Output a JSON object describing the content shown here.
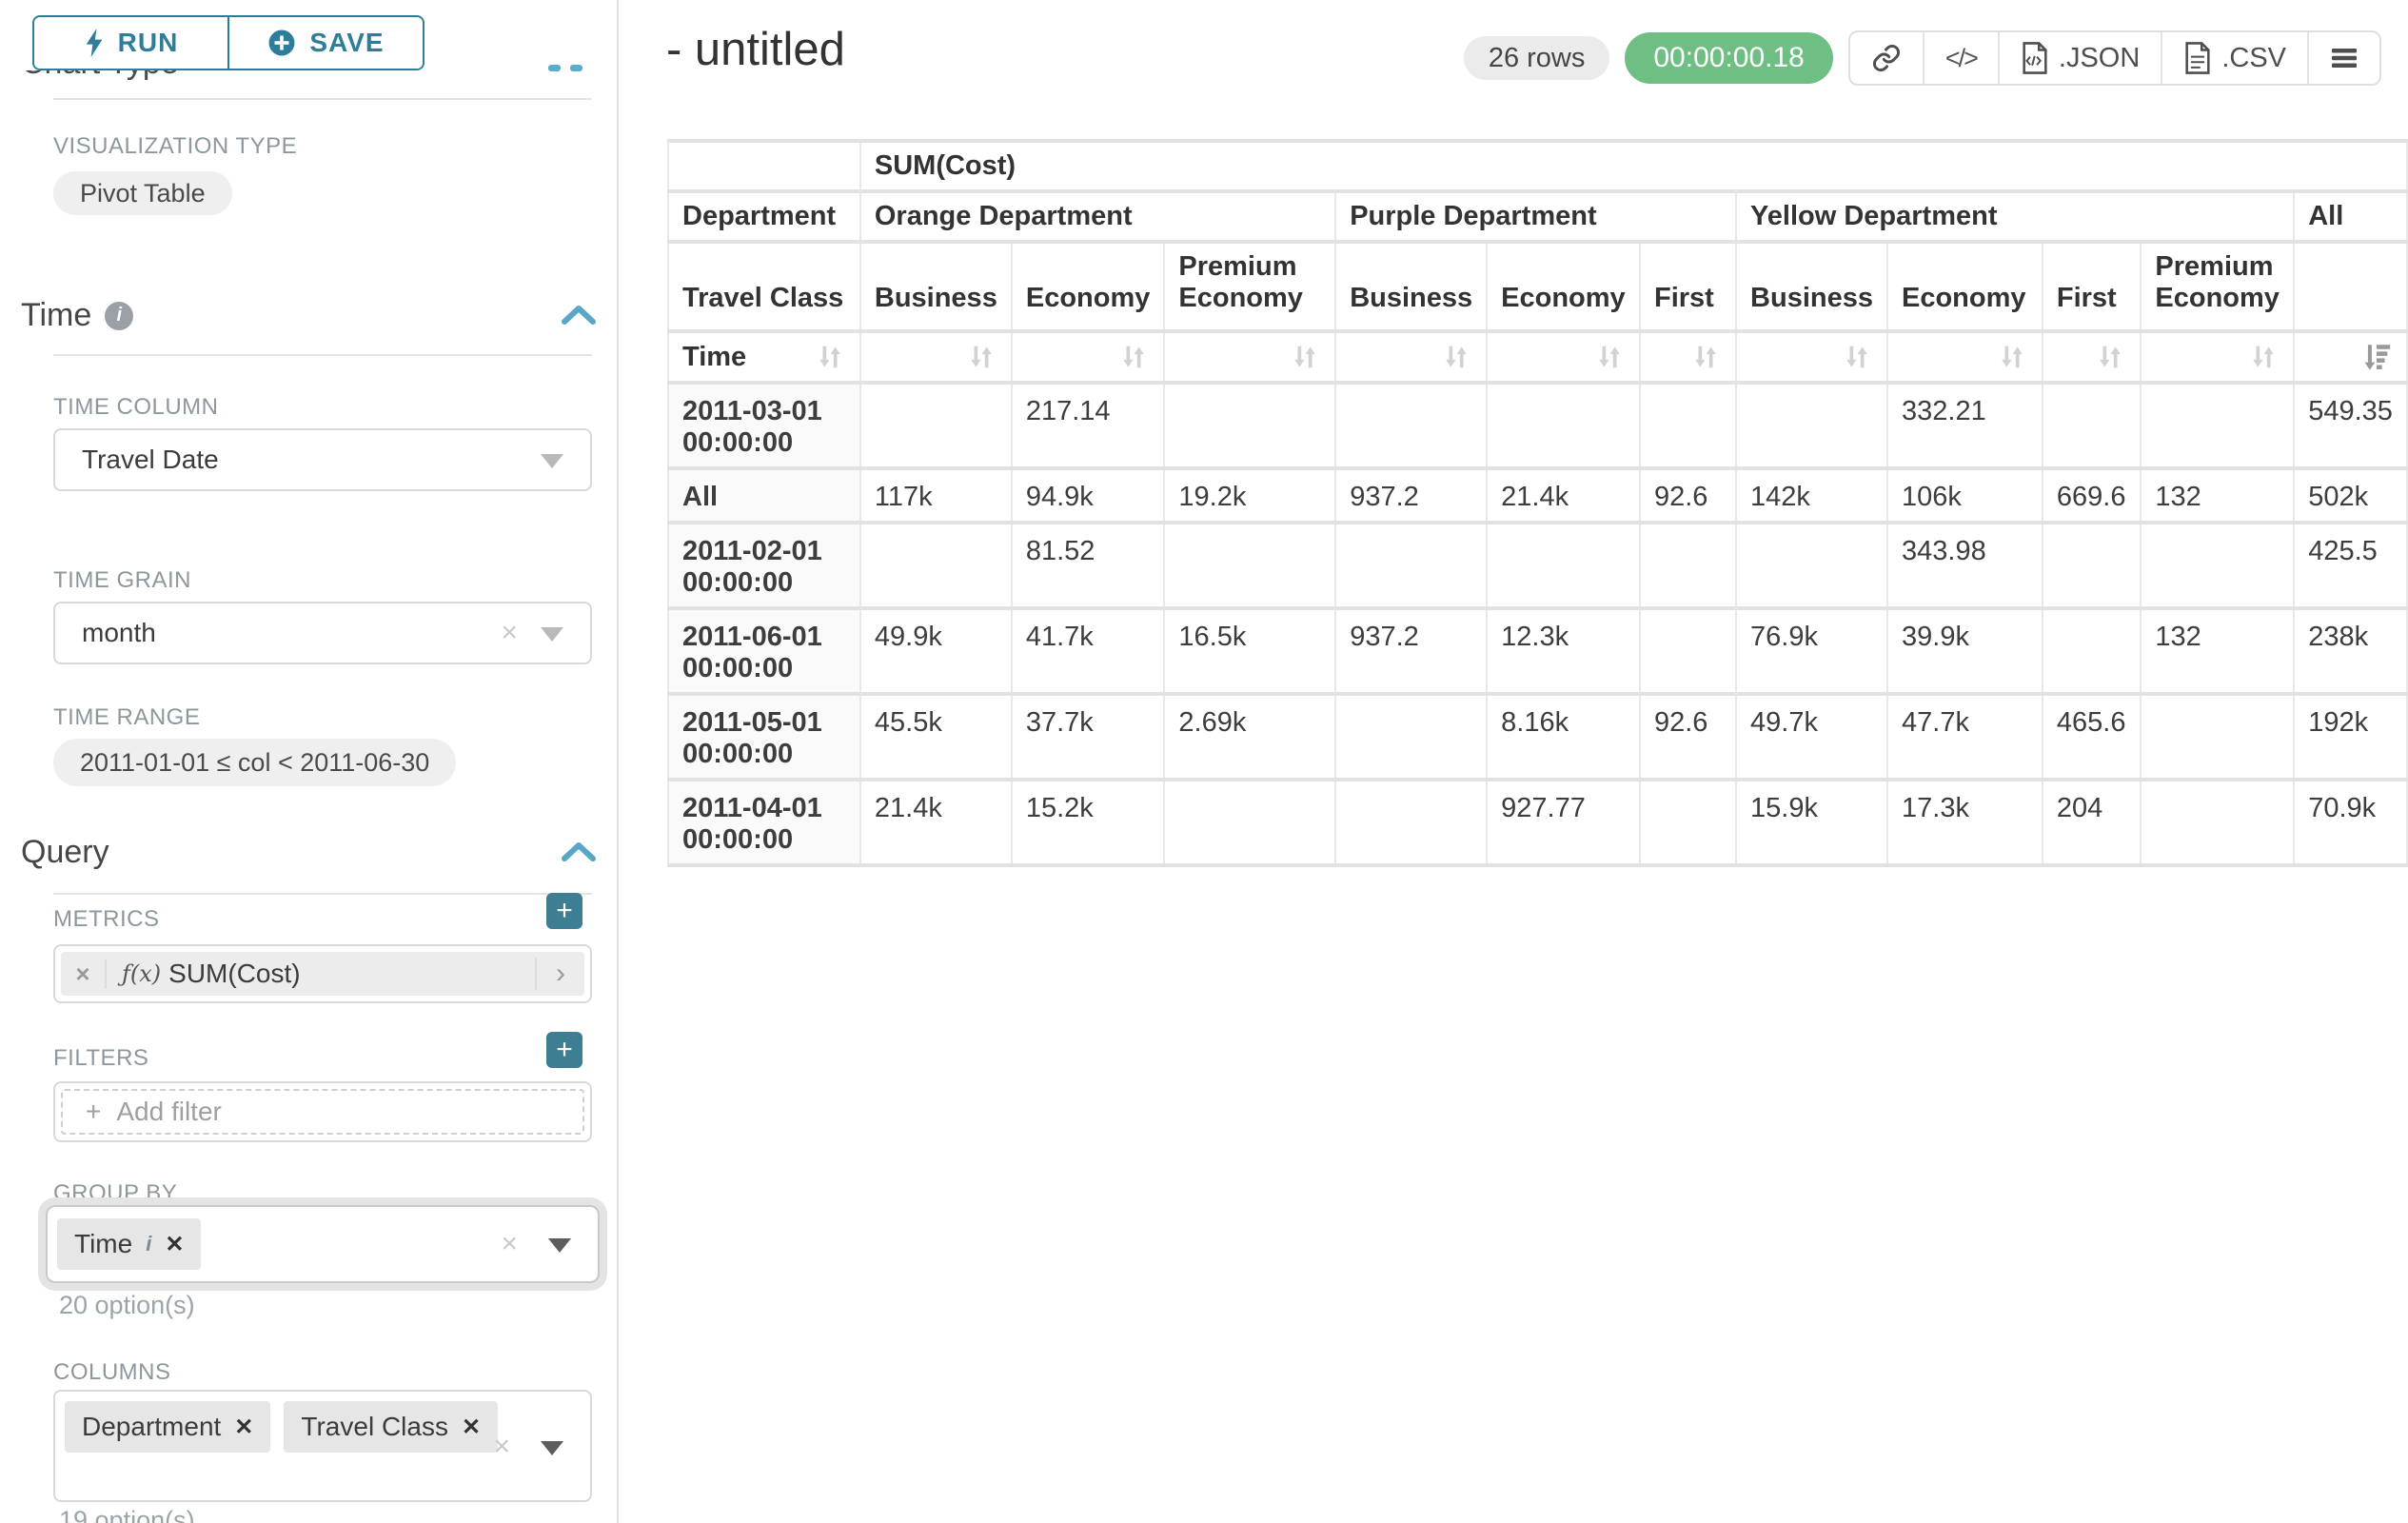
{
  "icons": {
    "plus": "+",
    "close": "✕",
    "clear": "×",
    "fx": "ƒ(x)",
    "chevron_right": "›",
    "code": "</>",
    "add": "+"
  },
  "sidebar": {
    "run_button": "RUN",
    "save_button": "SAVE",
    "scrolled_heading": "Chart Type",
    "visualization": {
      "label": "VISUALIZATION TYPE",
      "value": "Pivot Table"
    },
    "time": {
      "title": "Time",
      "column_label": "TIME COLUMN",
      "column_value": "Travel Date",
      "grain_label": "TIME GRAIN",
      "grain_value": "month",
      "range_label": "TIME RANGE",
      "range_value": "2011-01-01 ≤ col < 2011-06-30"
    },
    "query": {
      "title": "Query",
      "metrics_label": "METRICS",
      "metric_name": "SUM(Cost)",
      "filters_label": "FILTERS",
      "add_filter_label": "Add filter",
      "group_by_label": "GROUP BY",
      "group_by_pills": [
        "Time"
      ],
      "group_by_hint": "20 option(s)",
      "columns_label": "COLUMNS",
      "columns_pills": [
        "Department",
        "Travel Class"
      ],
      "columns_hint": "19 option(s)"
    }
  },
  "main": {
    "title": "- untitled",
    "rows_badge": "26 rows",
    "timer_badge": "00:00:00.18",
    "json_label": ".JSON",
    "csv_label": ".CSV"
  },
  "pivot_table": {
    "metric_header": "SUM(Cost)",
    "row_dim_label": "Department",
    "col_dim_label": "Travel Class",
    "time_label": "Time",
    "sorted_column": "All",
    "sort_direction": "descending",
    "column_groups": [
      {
        "label": "Orange Department",
        "columns": [
          "Business",
          "Economy",
          "Premium Economy"
        ]
      },
      {
        "label": "Purple Department",
        "columns": [
          "Business",
          "Economy",
          "First"
        ]
      },
      {
        "label": "Yellow Department",
        "columns": [
          "Business",
          "Economy",
          "First",
          "Premium Economy"
        ]
      },
      {
        "label": "All",
        "columns": [
          ""
        ]
      }
    ],
    "rows": [
      {
        "label": "2011-03-01 00:00:00",
        "values": [
          "",
          "217.14",
          "",
          "",
          "",
          "",
          "",
          "332.21",
          "",
          "",
          "549.35"
        ]
      },
      {
        "label": "All",
        "values": [
          "117k",
          "94.9k",
          "19.2k",
          "937.2",
          "21.4k",
          "92.6",
          "142k",
          "106k",
          "669.6",
          "132",
          "502k"
        ]
      },
      {
        "label": "2011-02-01 00:00:00",
        "values": [
          "",
          "81.52",
          "",
          "",
          "",
          "",
          "",
          "343.98",
          "",
          "",
          "425.5"
        ]
      },
      {
        "label": "2011-06-01 00:00:00",
        "values": [
          "49.9k",
          "41.7k",
          "16.5k",
          "937.2",
          "12.3k",
          "",
          "76.9k",
          "39.9k",
          "",
          "132",
          "238k"
        ]
      },
      {
        "label": "2011-05-01 00:00:00",
        "values": [
          "45.5k",
          "37.7k",
          "2.69k",
          "",
          "8.16k",
          "92.6",
          "49.7k",
          "47.7k",
          "465.6",
          "",
          "192k"
        ]
      },
      {
        "label": "2011-04-01 00:00:00",
        "values": [
          "21.4k",
          "15.2k",
          "",
          "",
          "927.77",
          "",
          "15.9k",
          "17.3k",
          "204",
          "",
          "70.9k"
        ]
      }
    ]
  }
}
